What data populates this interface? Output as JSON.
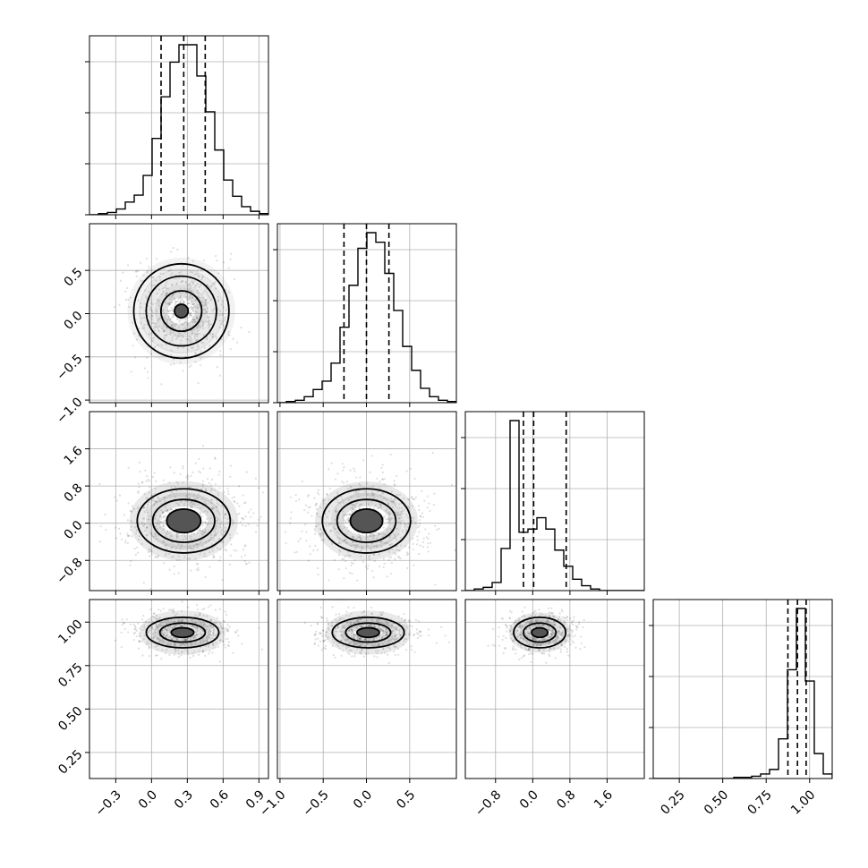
{
  "chart_data": {
    "type": "corner",
    "parameters": [
      {
        "range": [
          -0.52,
          0.98
        ],
        "ticks": [
          -0.3,
          0.0,
          0.3,
          0.6,
          0.9
        ],
        "tick_labels": [
          "−0.3",
          "0.0",
          "0.3",
          "0.6",
          "0.9"
        ],
        "quantiles": [
          0.08,
          0.27,
          0.45
        ],
        "hist": [
          0,
          1,
          2,
          5,
          11,
          17,
          34,
          66,
          102,
          132,
          147,
          147,
          120,
          89,
          56,
          30,
          16,
          7,
          3,
          1
        ]
      },
      {
        "range": [
          -1.03,
          1.04
        ],
        "ticks": [
          -1.0,
          -0.5,
          0.0,
          0.5
        ],
        "tick_labels": [
          "−1.0",
          "−0.5",
          "0.0",
          "0.5"
        ],
        "quantiles": [
          -0.26,
          0.0,
          0.26
        ],
        "hist": [
          0,
          1,
          2,
          5,
          11,
          18,
          33,
          63,
          98,
          129,
          142,
          134,
          108,
          77,
          47,
          27,
          12,
          5,
          2,
          1
        ]
      },
      {
        "range": [
          -1.45,
          2.4
        ],
        "ticks": [
          -0.8,
          0.0,
          0.8,
          1.6
        ],
        "tick_labels": [
          "−0.8",
          "0.0",
          "0.8",
          "1.6"
        ],
        "quantiles": [
          -0.2,
          0.02,
          0.72
        ],
        "hist": [
          0,
          1,
          2,
          5,
          26,
          105,
          36,
          38,
          45,
          38,
          25,
          15,
          7,
          3,
          1,
          0,
          0,
          0,
          0,
          0
        ]
      },
      {
        "range": [
          0.1,
          1.13
        ],
        "ticks": [
          0.25,
          0.5,
          0.75,
          1.0
        ],
        "tick_labels": [
          "0.25",
          "0.50",
          "0.75",
          "1.00"
        ],
        "quantiles": [
          0.875,
          0.93,
          0.98
        ],
        "hist": [
          0,
          0,
          0,
          0,
          0,
          0,
          0,
          0,
          0,
          1,
          1,
          2,
          4,
          8,
          35,
          96,
          150,
          86,
          22,
          4
        ]
      }
    ],
    "contours": [
      {
        "row": 1,
        "col": 0,
        "cx": 0.25,
        "cy": 0.03,
        "sx": 0.19,
        "sy": 0.26,
        "levels": [
          0.3,
          0.9,
          1.55,
          2.1
        ]
      },
      {
        "row": 2,
        "col": 0,
        "cx": 0.27,
        "cy": 0.05,
        "sx": 0.26,
        "sy": 0.46,
        "levels": [
          0.55,
          1.0,
          1.5
        ]
      },
      {
        "row": 2,
        "col": 1,
        "cx": 0.0,
        "cy": 0.05,
        "sx": 0.34,
        "sy": 0.46,
        "levels": [
          0.55,
          1.0,
          1.5
        ]
      },
      {
        "row": 3,
        "col": 0,
        "cx": 0.26,
        "cy": 0.94,
        "sx": 0.19,
        "sy": 0.055,
        "levels": [
          0.5,
          1.0,
          1.6
        ]
      },
      {
        "row": 3,
        "col": 1,
        "cx": 0.02,
        "cy": 0.94,
        "sx": 0.26,
        "sy": 0.055,
        "levels": [
          0.5,
          1.0,
          1.6
        ]
      },
      {
        "row": 3,
        "col": 2,
        "cx": 0.15,
        "cy": 0.94,
        "sx": 0.35,
        "sy": 0.055,
        "levels": [
          0.5,
          1.0,
          1.6
        ]
      }
    ]
  }
}
